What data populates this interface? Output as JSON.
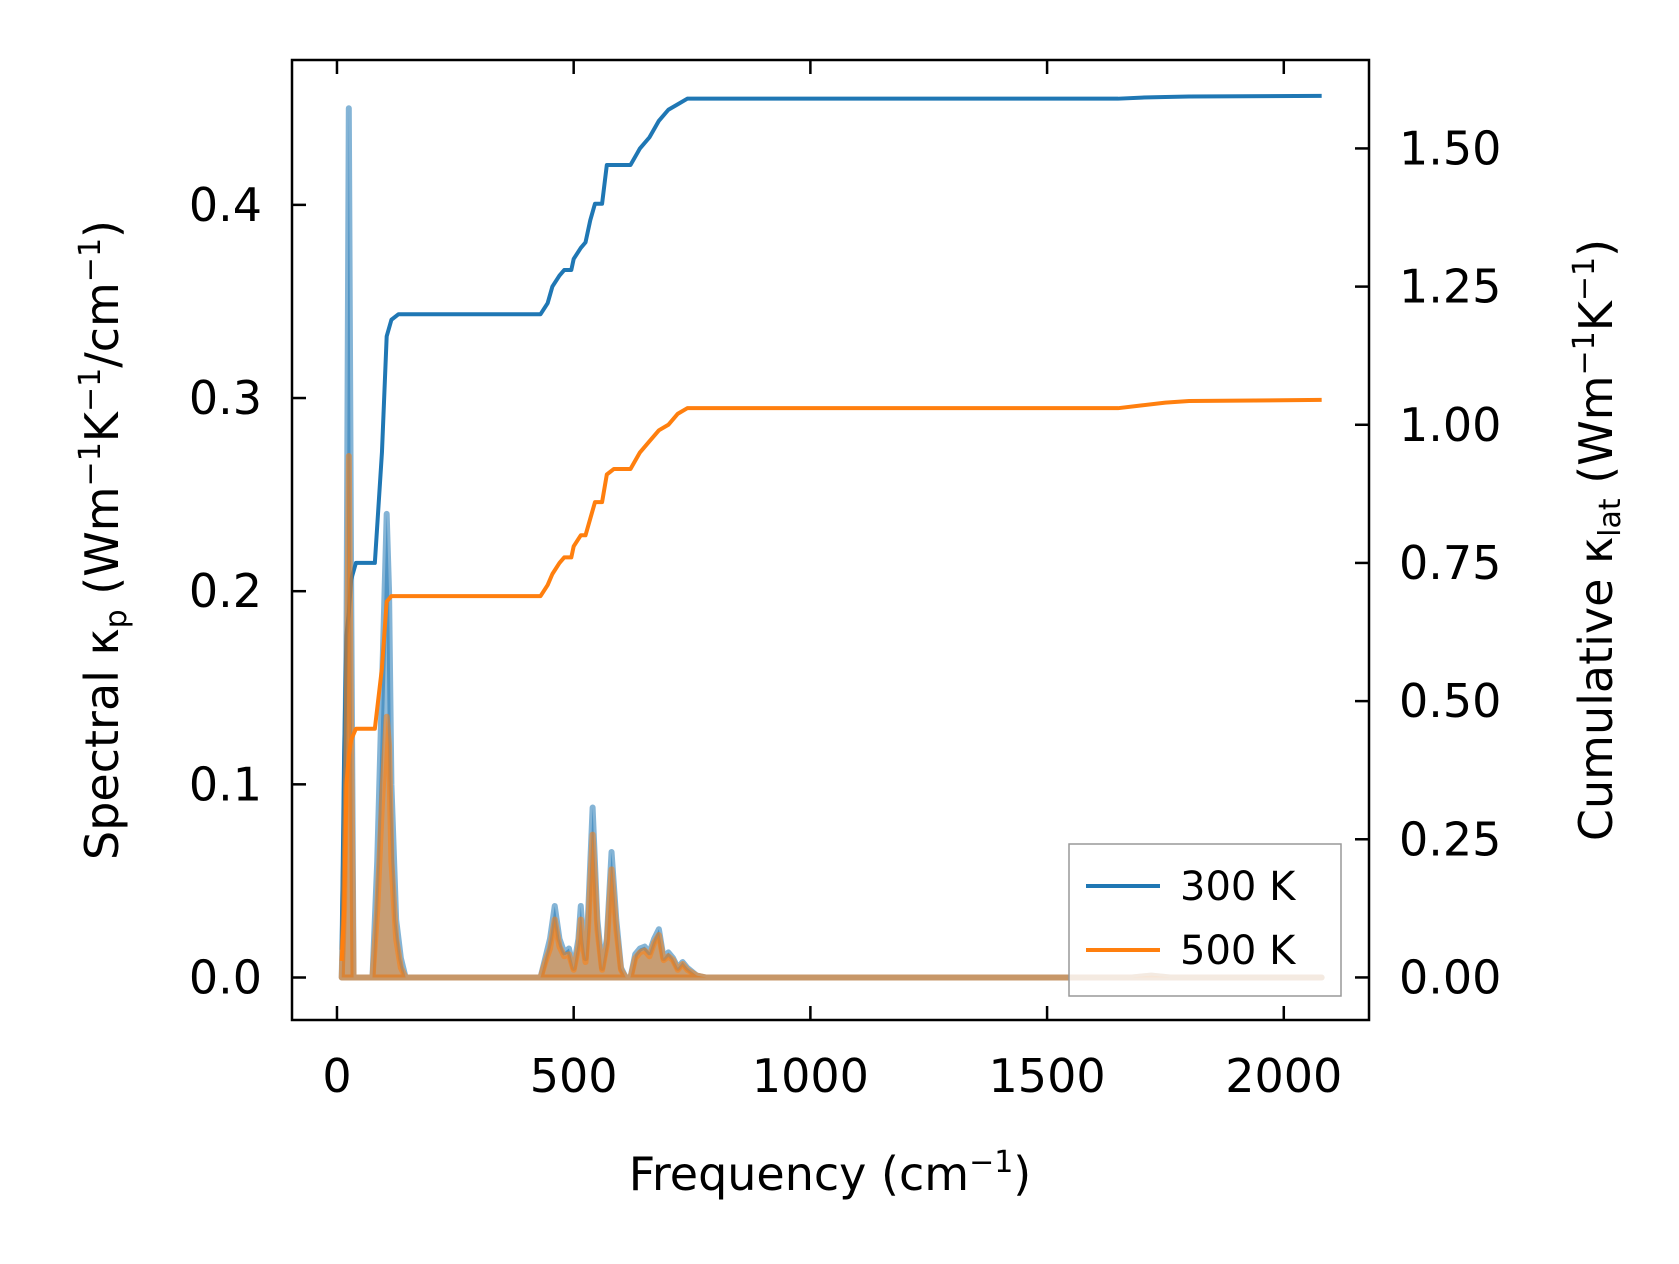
{
  "chart_data": {
    "type": "line",
    "xlabel": "Frequency (cm",
    "xlabel_sup": "−1",
    "xlabel_end": ")",
    "ylabel_left": {
      "pre": "Spectral κ",
      "sub": "p",
      "mid1": " (Wm",
      "sup1": "−1",
      "mid2": "K",
      "sup2": "−1",
      "mid3": "/cm",
      "sup3": "−1",
      "end": ")"
    },
    "ylabel_right": {
      "pre": "Cumulative κ",
      "sub": "lat",
      "mid1": " (Wm",
      "sup1": "−1",
      "mid2": "K",
      "sup2": "−1",
      "end": ")"
    },
    "xlim": [
      -95,
      2180
    ],
    "ylim_left": [
      -0.022,
      0.475
    ],
    "ylim_right": [
      -0.077,
      1.66
    ],
    "x_ticks": [
      0,
      500,
      1000,
      1500,
      2000
    ],
    "x_tick_labels": [
      "0",
      "500",
      "1000",
      "1500",
      "2000"
    ],
    "yleft_ticks": [
      0.0,
      0.1,
      0.2,
      0.3,
      0.4
    ],
    "yleft_tick_labels": [
      "0.0",
      "0.1",
      "0.2",
      "0.3",
      "0.4"
    ],
    "yright_ticks": [
      0.0,
      0.25,
      0.5,
      0.75,
      1.0,
      1.25,
      1.5
    ],
    "yright_tick_labels": [
      "0.00",
      "0.25",
      "0.50",
      "0.75",
      "1.00",
      "1.25",
      "1.50"
    ],
    "legend_position": "lower-right",
    "series": [
      {
        "name": "300 K",
        "color": "#1f77b4",
        "spectral": [
          [
            10,
            0.0
          ],
          [
            15,
            0.06
          ],
          [
            20,
            0.17
          ],
          [
            25,
            0.45
          ],
          [
            30,
            0.2
          ],
          [
            35,
            0.0
          ],
          [
            65,
            0.0
          ],
          [
            75,
            0.0
          ],
          [
            85,
            0.06
          ],
          [
            95,
            0.15
          ],
          [
            105,
            0.24
          ],
          [
            110,
            0.2
          ],
          [
            115,
            0.1
          ],
          [
            125,
            0.03
          ],
          [
            135,
            0.01
          ],
          [
            145,
            0.0
          ],
          [
            430,
            0.0
          ],
          [
            440,
            0.01
          ],
          [
            450,
            0.02
          ],
          [
            460,
            0.037
          ],
          [
            470,
            0.02
          ],
          [
            480,
            0.013
          ],
          [
            490,
            0.015
          ],
          [
            500,
            0.005
          ],
          [
            510,
            0.02
          ],
          [
            515,
            0.037
          ],
          [
            520,
            0.02
          ],
          [
            525,
            0.01
          ],
          [
            530,
            0.03
          ],
          [
            540,
            0.088
          ],
          [
            550,
            0.03
          ],
          [
            560,
            0.005
          ],
          [
            570,
            0.02
          ],
          [
            580,
            0.065
          ],
          [
            590,
            0.03
          ],
          [
            600,
            0.005
          ],
          [
            610,
            0.0
          ],
          [
            620,
            0.0
          ],
          [
            630,
            0.012
          ],
          [
            640,
            0.015
          ],
          [
            650,
            0.016
          ],
          [
            660,
            0.013
          ],
          [
            670,
            0.02
          ],
          [
            680,
            0.025
          ],
          [
            690,
            0.01
          ],
          [
            700,
            0.013
          ],
          [
            710,
            0.01
          ],
          [
            720,
            0.005
          ],
          [
            730,
            0.008
          ],
          [
            740,
            0.005
          ],
          [
            760,
            0.001
          ],
          [
            780,
            0.0
          ],
          [
            1640,
            0.0
          ],
          [
            1680,
            0.0
          ],
          [
            1720,
            0.001
          ],
          [
            1760,
            0.0
          ],
          [
            2080,
            0.0
          ]
        ],
        "cumulative": [
          [
            10,
            0.05
          ],
          [
            15,
            0.4
          ],
          [
            20,
            0.62
          ],
          [
            25,
            0.66
          ],
          [
            30,
            0.72
          ],
          [
            40,
            0.75
          ],
          [
            70,
            0.75
          ],
          [
            80,
            0.75
          ],
          [
            95,
            0.95
          ],
          [
            105,
            1.16
          ],
          [
            115,
            1.19
          ],
          [
            130,
            1.2
          ],
          [
            430,
            1.2
          ],
          [
            445,
            1.22
          ],
          [
            455,
            1.25
          ],
          [
            470,
            1.27
          ],
          [
            480,
            1.28
          ],
          [
            495,
            1.28
          ],
          [
            500,
            1.3
          ],
          [
            515,
            1.32
          ],
          [
            525,
            1.33
          ],
          [
            535,
            1.37
          ],
          [
            545,
            1.4
          ],
          [
            560,
            1.4
          ],
          [
            570,
            1.47
          ],
          [
            585,
            1.47
          ],
          [
            595,
            1.47
          ],
          [
            620,
            1.47
          ],
          [
            640,
            1.5
          ],
          [
            660,
            1.52
          ],
          [
            680,
            1.55
          ],
          [
            700,
            1.57
          ],
          [
            720,
            1.58
          ],
          [
            740,
            1.59
          ],
          [
            760,
            1.59
          ],
          [
            1650,
            1.59
          ],
          [
            1700,
            1.592
          ],
          [
            1750,
            1.593
          ],
          [
            1800,
            1.594
          ],
          [
            2080,
            1.595
          ]
        ]
      },
      {
        "name": "500 K",
        "color": "#ff7f0e",
        "spectral": [
          [
            10,
            0.0
          ],
          [
            15,
            0.035
          ],
          [
            20,
            0.11
          ],
          [
            25,
            0.27
          ],
          [
            30,
            0.12
          ],
          [
            35,
            0.0
          ],
          [
            65,
            0.0
          ],
          [
            75,
            0.0
          ],
          [
            85,
            0.035
          ],
          [
            95,
            0.09
          ],
          [
            105,
            0.135
          ],
          [
            110,
            0.12
          ],
          [
            115,
            0.06
          ],
          [
            125,
            0.02
          ],
          [
            135,
            0.005
          ],
          [
            145,
            0.0
          ],
          [
            430,
            0.0
          ],
          [
            440,
            0.008
          ],
          [
            450,
            0.015
          ],
          [
            460,
            0.03
          ],
          [
            470,
            0.016
          ],
          [
            480,
            0.011
          ],
          [
            490,
            0.012
          ],
          [
            500,
            0.004
          ],
          [
            510,
            0.016
          ],
          [
            515,
            0.03
          ],
          [
            520,
            0.016
          ],
          [
            525,
            0.008
          ],
          [
            530,
            0.024
          ],
          [
            540,
            0.074
          ],
          [
            550,
            0.025
          ],
          [
            560,
            0.004
          ],
          [
            570,
            0.017
          ],
          [
            580,
            0.056
          ],
          [
            590,
            0.025
          ],
          [
            600,
            0.004
          ],
          [
            610,
            0.0
          ],
          [
            620,
            0.0
          ],
          [
            630,
            0.01
          ],
          [
            640,
            0.013
          ],
          [
            650,
            0.014
          ],
          [
            660,
            0.011
          ],
          [
            670,
            0.018
          ],
          [
            680,
            0.022
          ],
          [
            690,
            0.009
          ],
          [
            700,
            0.011
          ],
          [
            710,
            0.009
          ],
          [
            720,
            0.004
          ],
          [
            730,
            0.007
          ],
          [
            740,
            0.004
          ],
          [
            760,
            0.001
          ],
          [
            780,
            0.0
          ],
          [
            1640,
            0.0
          ],
          [
            1680,
            0.0
          ],
          [
            1720,
            0.001
          ],
          [
            1760,
            0.0
          ],
          [
            2080,
            0.0
          ]
        ],
        "cumulative": [
          [
            10,
            0.03
          ],
          [
            15,
            0.12
          ],
          [
            20,
            0.35
          ],
          [
            25,
            0.4
          ],
          [
            30,
            0.43
          ],
          [
            40,
            0.45
          ],
          [
            70,
            0.45
          ],
          [
            80,
            0.45
          ],
          [
            95,
            0.56
          ],
          [
            105,
            0.68
          ],
          [
            115,
            0.69
          ],
          [
            130,
            0.69
          ],
          [
            430,
            0.69
          ],
          [
            445,
            0.71
          ],
          [
            455,
            0.73
          ],
          [
            470,
            0.75
          ],
          [
            480,
            0.76
          ],
          [
            495,
            0.76
          ],
          [
            500,
            0.78
          ],
          [
            515,
            0.8
          ],
          [
            525,
            0.8
          ],
          [
            535,
            0.83
          ],
          [
            545,
            0.86
          ],
          [
            560,
            0.86
          ],
          [
            570,
            0.91
          ],
          [
            585,
            0.92
          ],
          [
            600,
            0.92
          ],
          [
            620,
            0.92
          ],
          [
            640,
            0.95
          ],
          [
            660,
            0.97
          ],
          [
            680,
            0.99
          ],
          [
            700,
            1.0
          ],
          [
            720,
            1.02
          ],
          [
            740,
            1.03
          ],
          [
            760,
            1.03
          ],
          [
            1650,
            1.03
          ],
          [
            1700,
            1.035
          ],
          [
            1750,
            1.04
          ],
          [
            1800,
            1.043
          ],
          [
            2080,
            1.045
          ]
        ]
      }
    ]
  }
}
